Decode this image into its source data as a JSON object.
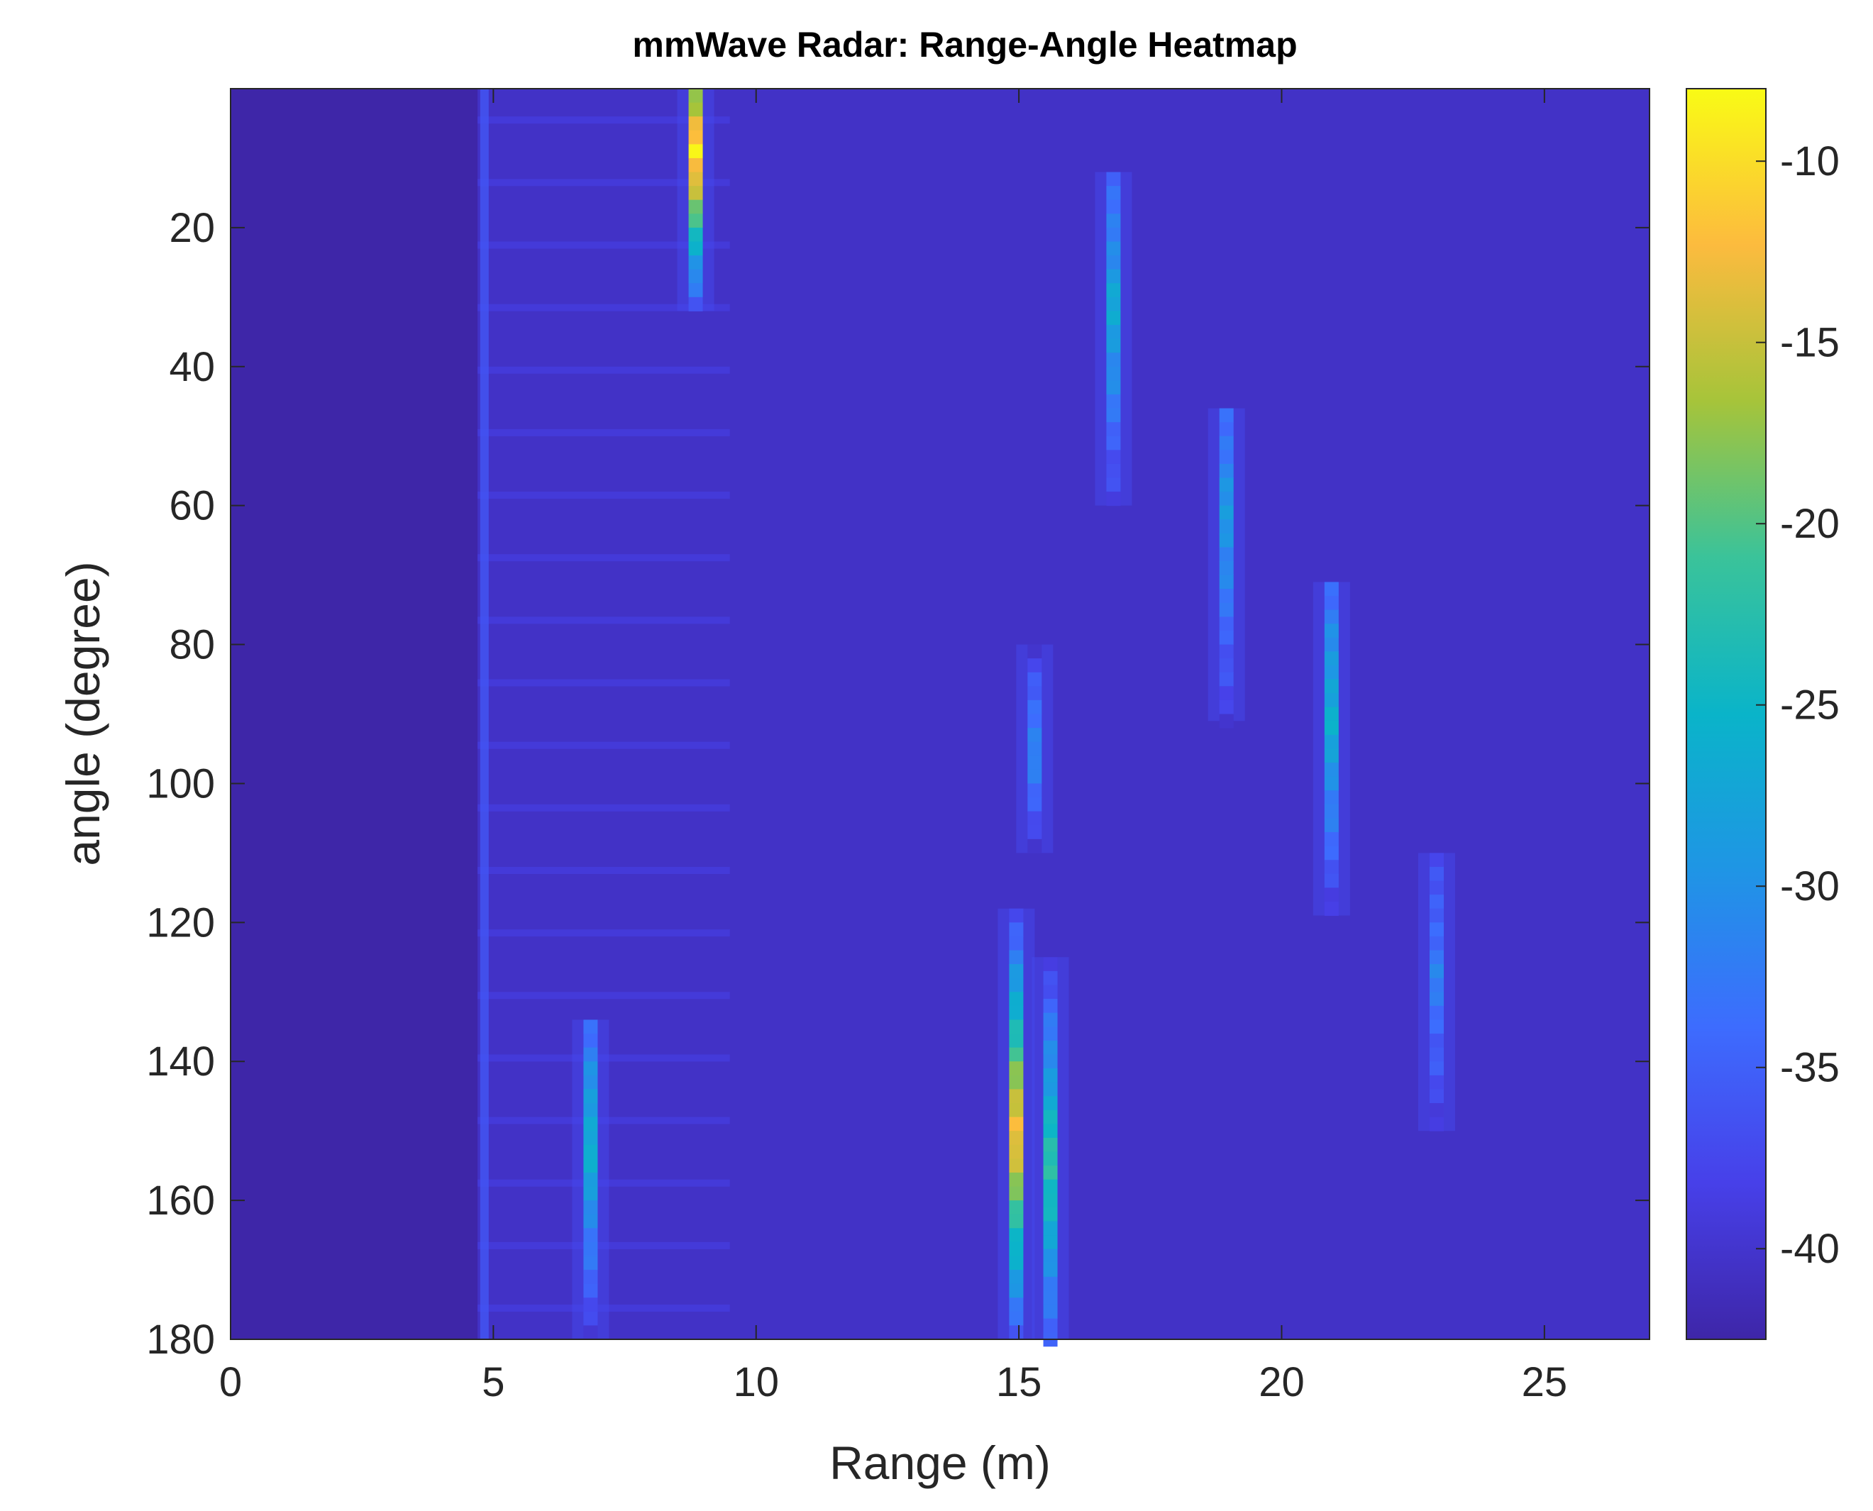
{
  "chart_data": {
    "type": "heatmap",
    "title": "mmWave Radar: Range-Angle Heatmap",
    "xlabel": "Range (m)",
    "ylabel": "angle (degree)",
    "xlim": [
      0,
      27
    ],
    "ylim": [
      0,
      180
    ],
    "y_reversed": true,
    "xticks": [
      0,
      5,
      10,
      15,
      20,
      25
    ],
    "yticks": [
      20,
      40,
      60,
      80,
      100,
      120,
      140,
      160,
      180
    ],
    "colorbar": {
      "colormap": "parula",
      "limits": [
        -42.5,
        -8
      ],
      "ticks": [
        -10,
        -15,
        -20,
        -25,
        -30,
        -35,
        -40
      ]
    },
    "background_level": -40.5,
    "no_data_region": {
      "range_max": 4.7,
      "level": -42.5
    },
    "hotspots": [
      {
        "range": 8.85,
        "angle_from": 0,
        "angle_to": 32,
        "peak": -9,
        "angle_center": 9
      },
      {
        "range": 6.85,
        "angle_from": 134,
        "angle_to": 180,
        "peak": -26,
        "angle_center": 152
      },
      {
        "range": 15.3,
        "angle_from": 80,
        "angle_to": 110,
        "peak": -31,
        "angle_center": 95
      },
      {
        "range": 14.95,
        "angle_from": 118,
        "angle_to": 180,
        "peak": -12,
        "angle_center": 150
      },
      {
        "range": 15.6,
        "angle_from": 125,
        "angle_to": 180,
        "peak": -22,
        "angle_center": 155
      },
      {
        "range": 16.8,
        "angle_from": 12,
        "angle_to": 60,
        "peak": -27,
        "angle_center": 32
      },
      {
        "range": 18.95,
        "angle_from": 46,
        "angle_to": 91,
        "peak": -29,
        "angle_center": 62
      },
      {
        "range": 20.95,
        "angle_from": 71,
        "angle_to": 119,
        "peak": -26,
        "angle_center": 90
      },
      {
        "range": 22.95,
        "angle_from": 110,
        "angle_to": 150,
        "peak": -32,
        "angle_center": 128
      }
    ]
  }
}
